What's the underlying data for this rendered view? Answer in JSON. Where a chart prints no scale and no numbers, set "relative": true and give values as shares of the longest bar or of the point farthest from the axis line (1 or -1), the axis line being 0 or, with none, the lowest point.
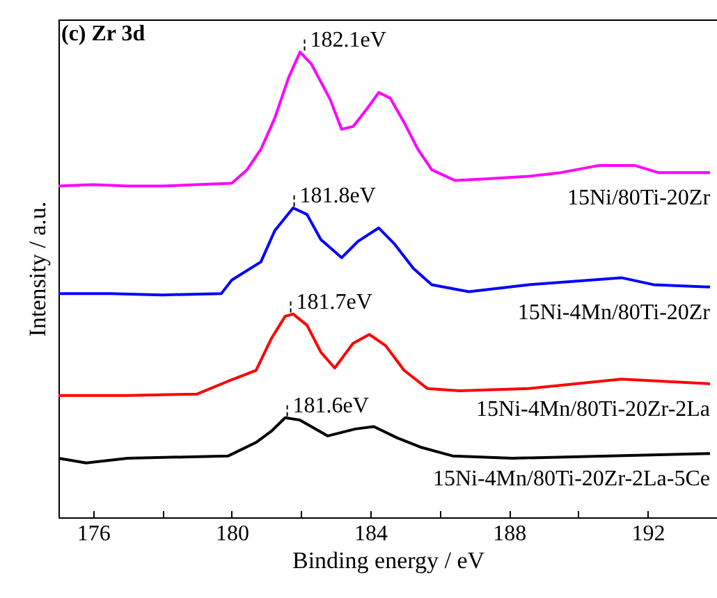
{
  "chart_data": {
    "type": "line",
    "title": "(c) Zr 3d",
    "xlabel": "Binding energy / eV",
    "ylabel": "Intensity / a.u.",
    "relative": true,
    "xlim": [
      175,
      194
    ],
    "xticks": [
      176,
      {
        "value": 178,
        "label": null
      },
      180,
      {
        "value": 182,
        "label": null
      },
      184,
      {
        "value": 186,
        "label": null
      },
      188,
      {
        "value": 190,
        "label": null
      },
      192
    ],
    "grid": false,
    "legend": false,
    "marker": "none",
    "line_style": "solid",
    "series": [
      {
        "name": "15Ni/80Ti-20Zr",
        "color": "#ff00ff",
        "x": [
          175,
          176,
          177,
          178,
          179,
          180,
          180.44,
          180.84,
          181.24,
          181.64,
          181.97,
          182.3,
          182.84,
          183.17,
          183.5,
          183.9,
          184.24,
          184.57,
          184.97,
          185.37,
          185.77,
          186.44,
          187.24,
          188.57,
          189.5,
          190.57,
          191.64,
          192.3,
          193.8
        ],
        "values": [
          0.712,
          0.715,
          0.712,
          0.712,
          0.715,
          0.718,
          0.747,
          0.791,
          0.858,
          0.945,
          1.0,
          0.974,
          0.898,
          0.834,
          0.84,
          0.878,
          0.913,
          0.901,
          0.849,
          0.791,
          0.747,
          0.724,
          0.727,
          0.733,
          0.741,
          0.756,
          0.756,
          0.741,
          0.741
        ]
      },
      {
        "name": "15Ni-4Mn/80Ti-20Zr",
        "color": "#0000ff",
        "x": [
          175,
          176.5,
          178,
          179.7,
          180,
          180.84,
          181.24,
          181.77,
          182.17,
          182.57,
          183.17,
          183.64,
          184.24,
          184.7,
          185.24,
          185.77,
          186.84,
          188.57,
          191.24,
          192.17,
          193.8
        ],
        "values": [
          0.481,
          0.481,
          0.478,
          0.481,
          0.51,
          0.549,
          0.616,
          0.665,
          0.651,
          0.597,
          0.558,
          0.593,
          0.622,
          0.587,
          0.535,
          0.5,
          0.485,
          0.5,
          0.515,
          0.5,
          0.495
        ]
      },
      {
        "name": "15Ni-4Mn/80Ti-20Zr-2La",
        "color": "#ff0000",
        "x": [
          175,
          177,
          179,
          180.04,
          180.7,
          181.14,
          181.54,
          181.77,
          182.17,
          182.57,
          182.97,
          183.5,
          183.97,
          184.44,
          184.97,
          185.64,
          186.57,
          188.57,
          191.24,
          193.8
        ],
        "values": [
          0.262,
          0.262,
          0.265,
          0.297,
          0.316,
          0.384,
          0.432,
          0.437,
          0.413,
          0.355,
          0.321,
          0.374,
          0.393,
          0.369,
          0.316,
          0.277,
          0.272,
          0.277,
          0.297,
          0.287
        ]
      },
      {
        "name": "15Ni-4Mn/80Ti-20Zr-2La-5Ce",
        "color": "#000000",
        "x": [
          175,
          175.8,
          177,
          179.9,
          180.7,
          181.14,
          181.54,
          181.97,
          182.77,
          183.57,
          184.1,
          184.77,
          185.44,
          186.37,
          188.1,
          193.8
        ],
        "values": [
          0.127,
          0.117,
          0.127,
          0.132,
          0.161,
          0.185,
          0.214,
          0.209,
          0.175,
          0.19,
          0.195,
          0.171,
          0.151,
          0.132,
          0.127,
          0.137
        ]
      }
    ],
    "annotations": [
      {
        "text": "182.1eV",
        "x": 182.1,
        "y": 1.0
      },
      {
        "text": "181.8eV",
        "x": 181.8,
        "y": 0.665
      },
      {
        "text": "181.7eV",
        "x": 181.7,
        "y": 0.437
      },
      {
        "text": "181.6eV",
        "x": 181.6,
        "y": 0.214
      }
    ]
  }
}
